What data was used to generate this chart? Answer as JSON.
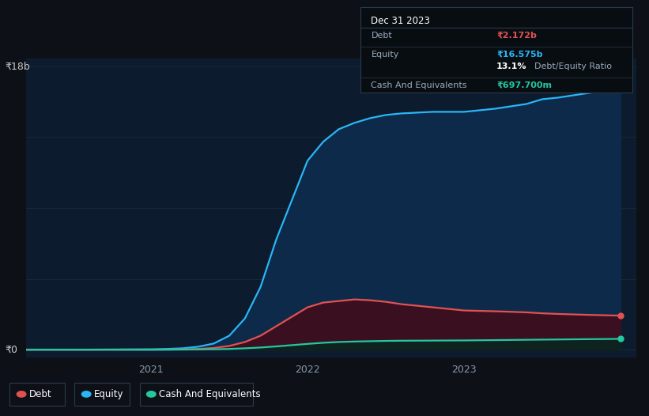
{
  "background_color": "#0d1117",
  "plot_bg_color": "#0d1b2e",
  "title": "Dec 31 2023",
  "ylabel_18b": "₹18b",
  "ylabel_0": "₹0",
  "x_ticks": [
    2021,
    2022,
    2023
  ],
  "x_range": [
    2020.2,
    2024.1
  ],
  "y_range": [
    -0.5,
    18.5
  ],
  "debt_color": "#e05252",
  "equity_color": "#29b6f6",
  "cash_color": "#26c6a0",
  "equity_fill_color": "#0d2a4a",
  "debt_fill_color": "#3a1020",
  "cash_fill_color": "#0a2520",
  "grid_color": "#1e2d3d",
  "tooltip_bg": "#080d12",
  "tooltip_border": "#2a3a4a",
  "time_points": [
    2020.0,
    2020.2,
    2020.4,
    2020.6,
    2020.8,
    2021.0,
    2021.1,
    2021.2,
    2021.3,
    2021.4,
    2021.5,
    2021.6,
    2021.7,
    2021.8,
    2021.9,
    2022.0,
    2022.1,
    2022.2,
    2022.3,
    2022.4,
    2022.5,
    2022.6,
    2022.8,
    2023.0,
    2023.2,
    2023.4,
    2023.5,
    2023.6,
    2023.8,
    2024.0
  ],
  "equity_values": [
    0.02,
    0.02,
    0.02,
    0.02,
    0.03,
    0.04,
    0.06,
    0.1,
    0.2,
    0.4,
    0.9,
    2.0,
    4.0,
    7.0,
    9.5,
    12.0,
    13.2,
    14.0,
    14.4,
    14.7,
    14.9,
    15.0,
    15.1,
    15.1,
    15.3,
    15.6,
    15.9,
    16.0,
    16.3,
    16.575
  ],
  "debt_values": [
    0.01,
    0.01,
    0.01,
    0.01,
    0.01,
    0.01,
    0.02,
    0.03,
    0.06,
    0.12,
    0.25,
    0.5,
    0.9,
    1.5,
    2.1,
    2.7,
    3.0,
    3.1,
    3.2,
    3.15,
    3.05,
    2.9,
    2.7,
    2.5,
    2.45,
    2.38,
    2.32,
    2.28,
    2.22,
    2.172
  ],
  "cash_values": [
    0.01,
    0.01,
    0.01,
    0.01,
    0.01,
    0.01,
    0.01,
    0.02,
    0.03,
    0.04,
    0.06,
    0.1,
    0.15,
    0.22,
    0.3,
    0.38,
    0.45,
    0.5,
    0.53,
    0.55,
    0.57,
    0.58,
    0.59,
    0.6,
    0.62,
    0.64,
    0.65,
    0.66,
    0.68,
    0.6977
  ],
  "legend_items": [
    "Debt",
    "Equity",
    "Cash And Equivalents"
  ],
  "legend_colors": [
    "#e05252",
    "#29b6f6",
    "#26c6a0"
  ],
  "tooltip_rows": [
    {
      "label": "Debt",
      "value": "₹2.172b",
      "value_color": "#e05252"
    },
    {
      "label": "Equity",
      "value": "₹16.575b",
      "value_color": "#29b6f6"
    },
    {
      "label": "",
      "value": "13.1% Debt/Equity Ratio",
      "value_color": "#ffffff",
      "mixed": true
    },
    {
      "label": "Cash And Equivalents",
      "value": "₹697.700m",
      "value_color": "#26c6a0"
    }
  ]
}
